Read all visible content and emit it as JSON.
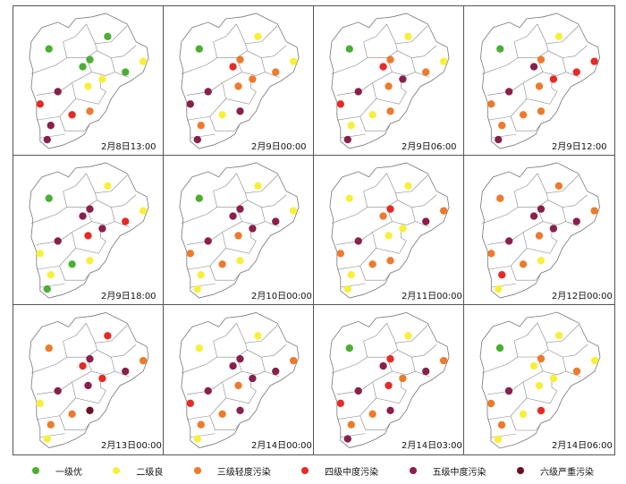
{
  "colors": {
    "一级优": "#4caf33",
    "二级良": "#f7f03a",
    "三级轻度污染": "#ee7a2c",
    "四级中度污染": "#e62a25",
    "五级中度污染": "#8a1f4c",
    "六级严重污染": "#6a1020"
  },
  "legend": [
    {
      "key": "一级优",
      "label": "一级优"
    },
    {
      "key": "二级良",
      "label": "二级良"
    },
    {
      "key": "三级轻度污染",
      "label": "三级轻度污染"
    },
    {
      "key": "四级中度污染",
      "label": "四级中度污染"
    },
    {
      "key": "五级中度污染",
      "label": "五级中度污染"
    },
    {
      "key": "六级严重污染",
      "label": "六级严重污染"
    }
  ],
  "panels": [
    {
      "label": "2月8日13:00",
      "levels": [
        "一级优",
        "一级优",
        "一级优",
        "一级优",
        "二级良",
        "一级优",
        "二级良",
        "五级中度污染",
        "二级良",
        "四级中度污染",
        "三级轻度污染",
        "四级中度污染",
        "五级中度污染",
        "五级中度污染"
      ]
    },
    {
      "label": "2月9日00:00",
      "levels": [
        "一级优",
        "二级良",
        "三级轻度污染",
        "三级轻度污染",
        "二级良",
        "四级中度污染",
        "三级轻度污染",
        "五级中度污染",
        "三级轻度污染",
        "五级中度污染",
        "五级中度污染",
        "二级良",
        "三级轻度污染",
        "五级中度污染"
      ]
    },
    {
      "label": "2月9日06:00",
      "levels": [
        "一级优",
        "二级良",
        "三级轻度污染",
        "三级轻度污染",
        "二级良",
        "四级中度污染",
        "五级中度污染",
        "五级中度污染",
        "三级轻度污染",
        "四级中度污染",
        "三级轻度污染",
        "二级良",
        "二级良",
        "五级中度污染"
      ]
    },
    {
      "label": "2月9日12:00",
      "levels": [
        "一级优",
        "二级良",
        "三级轻度污染",
        "四级中度污染",
        "四级中度污染",
        "五级中度污染",
        "四级中度污染",
        "五级中度污染",
        "三级轻度污染",
        "三级轻度污染",
        "三级轻度污染",
        "三级轻度污染",
        "三级轻度污染",
        "五级中度污染"
      ]
    },
    {
      "label": "2月9日18:00",
      "levels": [
        "一级优",
        "二级良",
        "五级中度污染",
        "四级中度污染",
        "二级良",
        "五级中度污染",
        "五级中度污染",
        "五级中度污染",
        "四级中度污染",
        "二级良",
        "二级良",
        "一级优",
        "二级良",
        "一级优"
      ]
    },
    {
      "label": "2月10日00:00",
      "levels": [
        "一级优",
        "二级良",
        "五级中度污染",
        "五级中度污染",
        "二级良",
        "五级中度污染",
        "五级中度污染",
        "五级中度污染",
        "三级轻度污染",
        "三级轻度污染",
        "二级良",
        "三级轻度污染",
        "二级良",
        "二级良"
      ]
    },
    {
      "label": "2月11日00:00",
      "levels": [
        "二级良",
        "二级良",
        "四级中度污染",
        "五级中度污染",
        "三级轻度污染",
        "三级轻度污染",
        "二级良",
        "五级中度污染",
        "二级良",
        "三级轻度污染",
        "三级轻度污染",
        "三级轻度污染",
        "二级良",
        "二级良"
      ]
    },
    {
      "label": "2月12日00:00",
      "levels": [
        "三级轻度污染",
        "三级轻度污染",
        "五级中度污染",
        "五级中度污染",
        "三级轻度污染",
        "五级中度污染",
        "五级中度污染",
        "五级中度污染",
        "三级轻度污染",
        "三级轻度污染",
        "二级良",
        "三级轻度污染",
        "四级中度污染",
        "二级良"
      ]
    },
    {
      "label": "2月13日00:00",
      "levels": [
        "三级轻度污染",
        "四级中度污染",
        "五级中度污染",
        "五级中度污染",
        "三级轻度污染",
        "四级中度污染",
        "四级中度污染",
        "五级中度污染",
        "五级中度污染",
        "二级良",
        "六级严重污染",
        "三级轻度污染",
        "三级轻度污染",
        "二级良"
      ]
    },
    {
      "label": "2月14日00:00",
      "levels": [
        "二级良",
        "二级良",
        "五级中度污染",
        "五级中度污染",
        "三级轻度污染",
        "五级中度污染",
        "五级中度污染",
        "五级中度污染",
        "三级轻度污染",
        "四级中度污染",
        "五级中度污染",
        "三级轻度污染",
        "三级轻度污染",
        "二级良"
      ]
    },
    {
      "label": "2月14日03:00",
      "levels": [
        "一级优",
        "二级良",
        "四级中度污染",
        "五级中度污染",
        "三级轻度污染",
        "五级中度污染",
        "三级轻度污染",
        "五级中度污染",
        "四级中度污染",
        "四级中度污染",
        "五级中度污染",
        "三级轻度污染",
        "三级轻度污染",
        "五级中度污染"
      ]
    },
    {
      "label": "2月14日06:00",
      "levels": [
        "一级优",
        "二级良",
        "三级轻度污染",
        "三级轻度污染",
        "二级良",
        "二级良",
        "二级良",
        "五级中度污染",
        "二级良",
        "三级轻度污染",
        "四级中度污染",
        "二级良",
        "三级轻度污染",
        "二级良"
      ]
    }
  ]
}
